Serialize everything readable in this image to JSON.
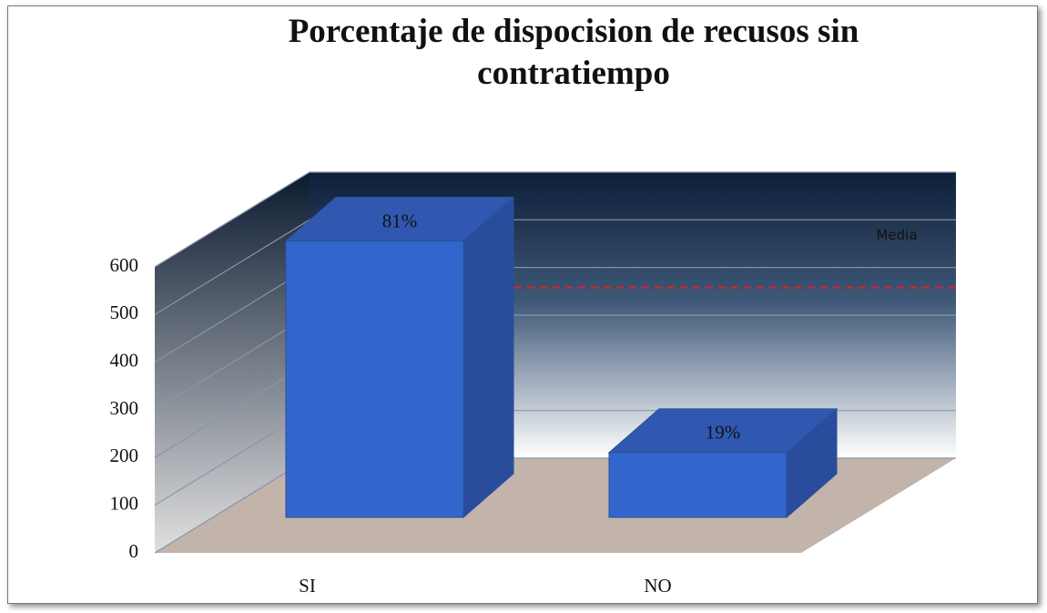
{
  "chart_data": {
    "type": "bar3d",
    "title": "Porcentaje de dispocision de recusos sin contratiempo",
    "categories": [
      "SI",
      "NO"
    ],
    "values": [
      580,
      136
    ],
    "value_labels": [
      "81%",
      "19%"
    ],
    "color": "#3366cc",
    "ylim": [
      0,
      600
    ],
    "yticks": [
      0,
      100,
      200,
      300,
      400,
      500,
      600
    ],
    "grid": true,
    "media": {
      "label": "Media",
      "value": 358,
      "color": "#e02020"
    }
  }
}
